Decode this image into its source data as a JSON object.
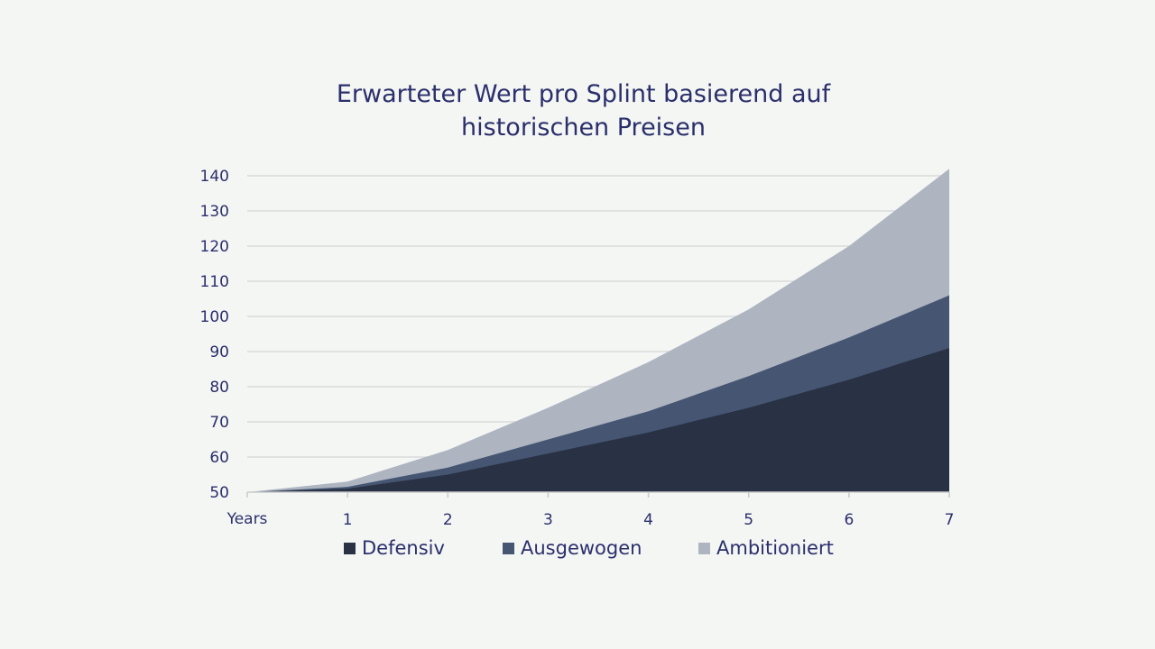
{
  "chart_data": {
    "type": "area",
    "stacked": true,
    "title_lines": [
      "Erwarteter Wert pro Splint basierend auf",
      "historischen Preisen"
    ],
    "x_label": "Years",
    "x": [
      0,
      1,
      2,
      3,
      4,
      5,
      6,
      7
    ],
    "x_tick_labels": [
      "1",
      "2",
      "3",
      "4",
      "5",
      "6",
      "7"
    ],
    "y_ticks": [
      50,
      60,
      70,
      80,
      90,
      100,
      110,
      120,
      130,
      140
    ],
    "ylim": [
      50,
      140
    ],
    "grid": true,
    "legend_position": "bottom",
    "series": [
      {
        "name": "Defensiv",
        "color": "#293144",
        "values": [
          50,
          51,
          55,
          61,
          67,
          74,
          82,
          91
        ]
      },
      {
        "name": "Ausgewogen",
        "color": "#465672",
        "values": [
          50,
          51.5,
          57,
          65,
          73,
          83,
          94,
          106
        ]
      },
      {
        "name": "Ambitioniert",
        "color": "#aeb5c1",
        "values": [
          50,
          53,
          62,
          74,
          87,
          102,
          120,
          142
        ]
      }
    ],
    "colors": {
      "text": "#2b2f6b",
      "grid": "#d9dcdc",
      "axis": "#c9cccc",
      "background": "#f4f6f4"
    }
  }
}
